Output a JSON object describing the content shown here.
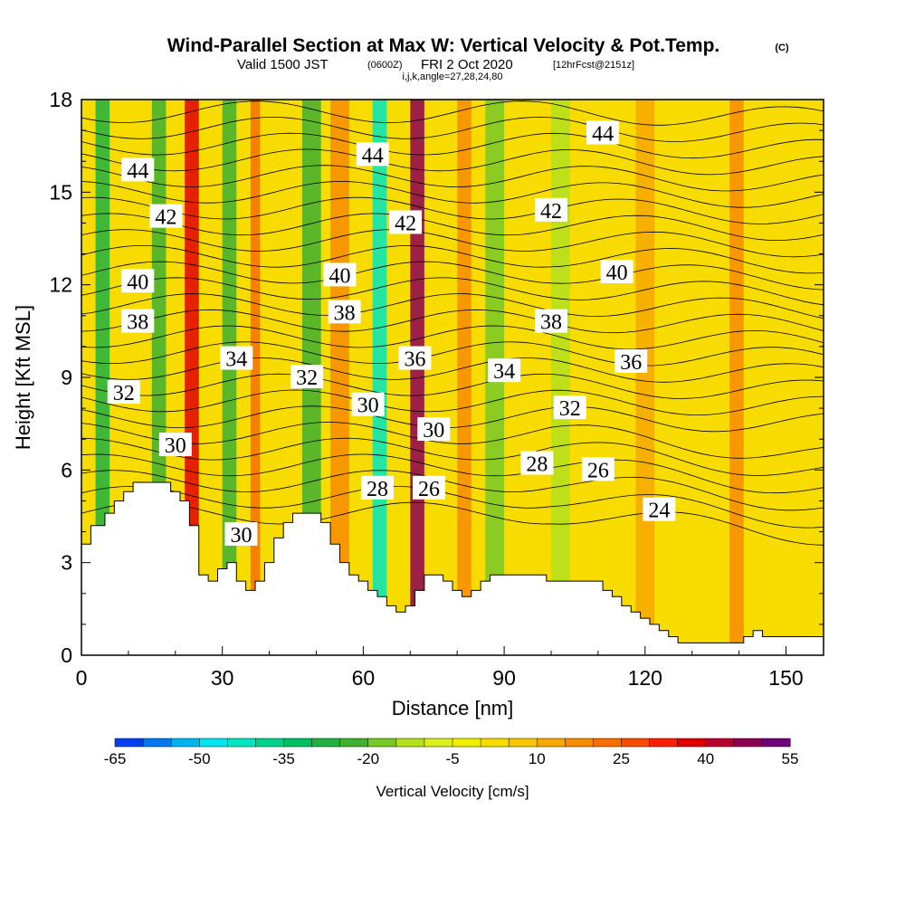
{
  "header": {
    "title": "Wind-Parallel Section at Max W: Vertical Velocity & Pot.Temp.",
    "copyright": "(C)",
    "valid_prefix": "Valid 1500 JST",
    "valid_utc": "(0600Z)",
    "valid_date": "FRI 2 Oct 2020",
    "forecast": "[12hrFcst@2151z]",
    "indices": "i,j,k,angle=27,28,24,80"
  },
  "chart_data": {
    "type": "heatmap",
    "xlabel": "Distance [nm]",
    "ylabel": "Height [Kft MSL]",
    "xlim": [
      0,
      158
    ],
    "ylim": [
      0,
      18
    ],
    "x_ticks": [
      0,
      30,
      60,
      90,
      120,
      150
    ],
    "y_ticks": [
      0,
      3,
      6,
      9,
      12,
      15,
      18
    ],
    "colorbar": {
      "label": "Vertical Velocity [cm/s]",
      "tick_labels": [
        "-65",
        "-50",
        "-35",
        "-20",
        "-5",
        "10",
        "25",
        "40",
        "55"
      ],
      "levels": [
        -65,
        -60,
        -55,
        -50,
        -45,
        -40,
        -35,
        -30,
        -25,
        -20,
        -15,
        -10,
        -5,
        0,
        5,
        10,
        15,
        20,
        25,
        30,
        35,
        40,
        45,
        50,
        55
      ],
      "colors": [
        "#0014f0",
        "#0040f0",
        "#0078f0",
        "#00b4f0",
        "#00e6f0",
        "#00e6c0",
        "#00d28c",
        "#00be64",
        "#20b040",
        "#40b030",
        "#78c828",
        "#b4e01e",
        "#dcf01e",
        "#f0f000",
        "#f8dc00",
        "#f8c800",
        "#f8a800",
        "#f88c00",
        "#f86e00",
        "#f84c00",
        "#f81e00",
        "#e00000",
        "#b8002c",
        "#8c0050",
        "#6e0078"
      ]
    },
    "velocity_bands": [
      {
        "x": 3,
        "w": 3,
        "value": -25
      },
      {
        "x": 15,
        "w": 3,
        "value": -20
      },
      {
        "x": 22,
        "w": 3,
        "value": 40
      },
      {
        "x": 30,
        "w": 3,
        "value": -20
      },
      {
        "x": 36,
        "w": 2,
        "value": 25
      },
      {
        "x": 47,
        "w": 4,
        "value": -20
      },
      {
        "x": 53,
        "w": 4,
        "value": 20
      },
      {
        "x": 62,
        "w": 3,
        "value": -40
      },
      {
        "x": 70,
        "w": 3,
        "value": 50
      },
      {
        "x": 80,
        "w": 3,
        "value": 20
      },
      {
        "x": 86,
        "w": 4,
        "value": -15
      },
      {
        "x": 100,
        "w": 4,
        "value": -10
      },
      {
        "x": 118,
        "w": 4,
        "value": 15
      },
      {
        "x": 138,
        "w": 3,
        "value": 20
      }
    ],
    "theta_contour_labels": [
      {
        "text": "44",
        "x": 12,
        "y": 15.7
      },
      {
        "text": "42",
        "x": 18,
        "y": 14.2
      },
      {
        "text": "40",
        "x": 12,
        "y": 12.1
      },
      {
        "text": "38",
        "x": 12,
        "y": 10.8
      },
      {
        "text": "34",
        "x": 33,
        "y": 9.6
      },
      {
        "text": "32",
        "x": 9,
        "y": 8.5
      },
      {
        "text": "32",
        "x": 48,
        "y": 9.0
      },
      {
        "text": "30",
        "x": 20,
        "y": 6.8
      },
      {
        "text": "30",
        "x": 34,
        "y": 3.9
      },
      {
        "text": "40",
        "x": 55,
        "y": 12.3
      },
      {
        "text": "38",
        "x": 56,
        "y": 11.1
      },
      {
        "text": "44",
        "x": 62,
        "y": 16.2
      },
      {
        "text": "42",
        "x": 69,
        "y": 14.0
      },
      {
        "text": "36",
        "x": 71,
        "y": 9.6
      },
      {
        "text": "30",
        "x": 61,
        "y": 8.1
      },
      {
        "text": "30",
        "x": 75,
        "y": 7.3
      },
      {
        "text": "28",
        "x": 63,
        "y": 5.4
      },
      {
        "text": "26",
        "x": 74,
        "y": 5.4
      },
      {
        "text": "34",
        "x": 90,
        "y": 9.2
      },
      {
        "text": "42",
        "x": 100,
        "y": 14.4
      },
      {
        "text": "38",
        "x": 100,
        "y": 10.8
      },
      {
        "text": "32",
        "x": 104,
        "y": 8.0
      },
      {
        "text": "28",
        "x": 97,
        "y": 6.2
      },
      {
        "text": "26",
        "x": 110,
        "y": 6.0
      },
      {
        "text": "44",
        "x": 111,
        "y": 16.9
      },
      {
        "text": "40",
        "x": 114,
        "y": 12.4
      },
      {
        "text": "36",
        "x": 117,
        "y": 9.5
      },
      {
        "text": "24",
        "x": 123,
        "y": 4.7
      }
    ],
    "terrain_top": [
      [
        0,
        3.6
      ],
      [
        2,
        4.2
      ],
      [
        5,
        4.6
      ],
      [
        7,
        5.0
      ],
      [
        9,
        5.3
      ],
      [
        11,
        5.6
      ],
      [
        13,
        5.6
      ],
      [
        19,
        5.3
      ],
      [
        21,
        5.0
      ],
      [
        23,
        4.2
      ],
      [
        25,
        2.6
      ],
      [
        27,
        2.4
      ],
      [
        29,
        2.8
      ],
      [
        31,
        3.0
      ],
      [
        33,
        2.4
      ],
      [
        35,
        2.1
      ],
      [
        37,
        2.4
      ],
      [
        39,
        3.0
      ],
      [
        41,
        3.8
      ],
      [
        43,
        4.3
      ],
      [
        45,
        4.6
      ],
      [
        51,
        4.3
      ],
      [
        53,
        3.6
      ],
      [
        55,
        3.0
      ],
      [
        57,
        2.6
      ],
      [
        59,
        2.4
      ],
      [
        61,
        2.1
      ],
      [
        63,
        1.9
      ],
      [
        65,
        1.6
      ],
      [
        67,
        1.4
      ],
      [
        69,
        1.6
      ],
      [
        71,
        2.1
      ],
      [
        73,
        2.6
      ],
      [
        75,
        2.6
      ],
      [
        77,
        2.4
      ],
      [
        79,
        2.1
      ],
      [
        81,
        1.9
      ],
      [
        83,
        2.1
      ],
      [
        85,
        2.4
      ],
      [
        87,
        2.6
      ],
      [
        91,
        2.6
      ],
      [
        95,
        2.6
      ],
      [
        97,
        2.6
      ],
      [
        99,
        2.4
      ],
      [
        103,
        2.4
      ],
      [
        107,
        2.4
      ],
      [
        111,
        2.1
      ],
      [
        113,
        1.9
      ],
      [
        115,
        1.6
      ],
      [
        117,
        1.4
      ],
      [
        119,
        1.2
      ],
      [
        121,
        1.0
      ],
      [
        123,
        0.8
      ],
      [
        125,
        0.6
      ],
      [
        127,
        0.4
      ],
      [
        131,
        0.4
      ],
      [
        135,
        0.4
      ],
      [
        139,
        0.4
      ],
      [
        141,
        0.6
      ],
      [
        143,
        0.8
      ],
      [
        145,
        0.6
      ],
      [
        149,
        0.6
      ],
      [
        151,
        0.6
      ],
      [
        155,
        0.6
      ],
      [
        158,
        0.6
      ]
    ]
  }
}
